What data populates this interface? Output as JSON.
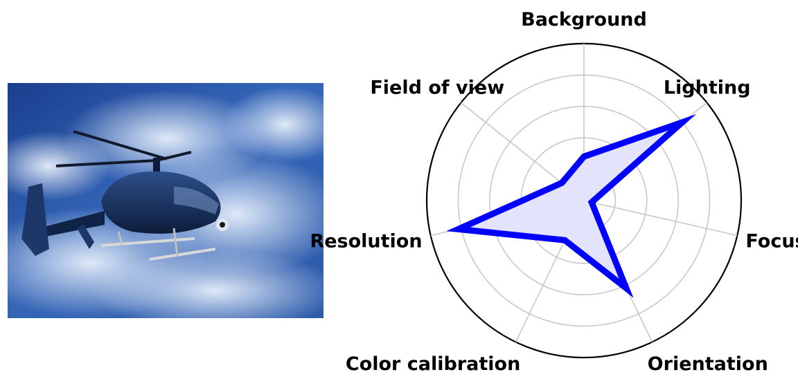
{
  "image": {
    "subject": "helicopter"
  },
  "colors": {
    "series_line": "#0000ff",
    "series_fill": "#e3e3fb",
    "grid": "#c8c8c8",
    "frame": "#000000"
  },
  "chart_data": {
    "type": "radar",
    "categories": [
      "Background",
      "Lighting",
      "Focus",
      "Orientation",
      "Color calibration",
      "Resolution",
      "Field of view"
    ],
    "series": [
      {
        "values": [
          0.28,
          0.8,
          0.05,
          0.62,
          0.28,
          0.82,
          0.18
        ]
      }
    ],
    "rlim": [
      0,
      1
    ],
    "r_gridlines": [
      0.2,
      0.4,
      0.6,
      0.8,
      1.0
    ],
    "grid": true,
    "radial_tick_labels_shown": false
  }
}
